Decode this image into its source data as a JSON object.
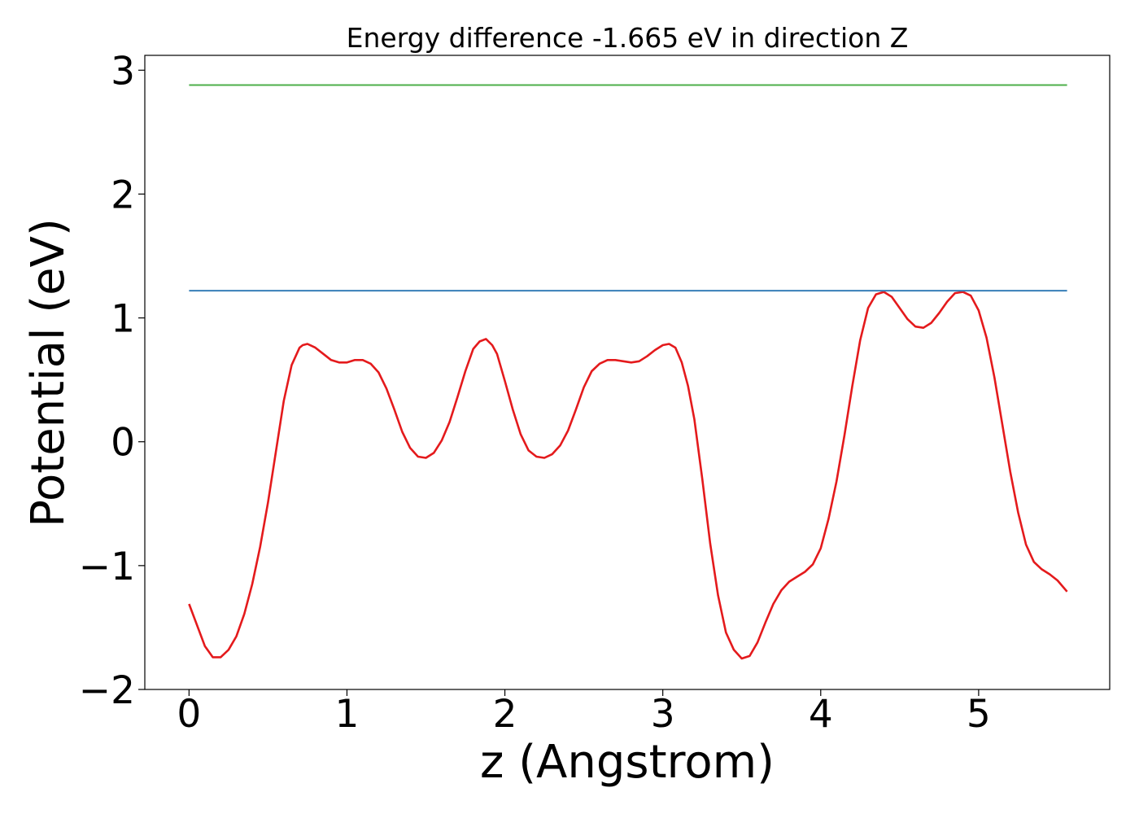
{
  "chart_data": {
    "type": "line",
    "title": "Energy difference -1.665 eV in direction Z",
    "xlabel": "z (Angstrom)",
    "ylabel": "Potential (eV)",
    "xlim": [
      -0.28,
      5.83
    ],
    "ylim": [
      -2.0,
      3.12
    ],
    "x_ticks": [
      0,
      1,
      2,
      3,
      4,
      5
    ],
    "x_tick_labels": [
      "0",
      "1",
      "2",
      "3",
      "4",
      "5"
    ],
    "y_ticks": [
      -2,
      -1,
      0,
      1,
      2,
      3
    ],
    "y_tick_labels": [
      "−2",
      "−1",
      "0",
      "1",
      "2",
      "3"
    ],
    "grid": false,
    "series": [
      {
        "color": "#e41a1c",
        "x": [
          0,
          0.1,
          0.15,
          0.2,
          0.25,
          0.3,
          0.35,
          0.4,
          0.45,
          0.5,
          0.55,
          0.6,
          0.65,
          0.7,
          0.72,
          0.75,
          0.8,
          0.85,
          0.9,
          0.95,
          1.0,
          1.05,
          1.1,
          1.15,
          1.2,
          1.25,
          1.3,
          1.35,
          1.4,
          1.45,
          1.5,
          1.55,
          1.6,
          1.65,
          1.7,
          1.75,
          1.8,
          1.84,
          1.88,
          1.92,
          1.95,
          2.0,
          2.05,
          2.1,
          2.15,
          2.2,
          2.25,
          2.3,
          2.35,
          2.4,
          2.45,
          2.5,
          2.55,
          2.6,
          2.65,
          2.7,
          2.75,
          2.8,
          2.85,
          2.9,
          2.95,
          3.0,
          3.04,
          3.08,
          3.12,
          3.16,
          3.2,
          3.25,
          3.3,
          3.35,
          3.4,
          3.45,
          3.5,
          3.55,
          3.6,
          3.65,
          3.7,
          3.75,
          3.8,
          3.85,
          3.9,
          3.95,
          4.0,
          4.05,
          4.1,
          4.15,
          4.2,
          4.25,
          4.3,
          4.35,
          4.4,
          4.45,
          4.5,
          4.55,
          4.6,
          4.65,
          4.7,
          4.75,
          4.8,
          4.85,
          4.9,
          4.95,
          5.0,
          5.05,
          5.1,
          5.15,
          5.2,
          5.25,
          5.3,
          5.35,
          5.4,
          5.45,
          5.5,
          5.56
        ],
        "y": [
          -1.31,
          -1.65,
          -1.74,
          -1.74,
          -1.68,
          -1.57,
          -1.39,
          -1.15,
          -0.85,
          -0.49,
          -0.08,
          0.33,
          0.62,
          0.76,
          0.78,
          0.79,
          0.76,
          0.71,
          0.66,
          0.64,
          0.64,
          0.66,
          0.66,
          0.63,
          0.56,
          0.43,
          0.26,
          0.08,
          -0.05,
          -0.12,
          -0.13,
          -0.09,
          0.01,
          0.16,
          0.36,
          0.57,
          0.75,
          0.81,
          0.83,
          0.78,
          0.71,
          0.49,
          0.26,
          0.06,
          -0.07,
          -0.12,
          -0.13,
          -0.1,
          -0.03,
          0.09,
          0.26,
          0.44,
          0.57,
          0.63,
          0.66,
          0.66,
          0.65,
          0.64,
          0.65,
          0.69,
          0.74,
          0.78,
          0.79,
          0.76,
          0.64,
          0.45,
          0.18,
          -0.3,
          -0.82,
          -1.24,
          -1.54,
          -1.68,
          -1.75,
          -1.73,
          -1.62,
          -1.46,
          -1.31,
          -1.2,
          -1.13,
          -1.09,
          -1.05,
          -0.99,
          -0.86,
          -0.62,
          -0.32,
          0.05,
          0.45,
          0.82,
          1.08,
          1.19,
          1.21,
          1.17,
          1.08,
          0.99,
          0.93,
          0.92,
          0.96,
          1.04,
          1.13,
          1.2,
          1.21,
          1.18,
          1.06,
          0.84,
          0.52,
          0.14,
          -0.24,
          -0.57,
          -0.83,
          -0.97,
          -1.03,
          -1.07,
          -1.12,
          -1.21
        ]
      },
      {
        "color": "#377eb8",
        "x": [
          0,
          5.56
        ],
        "y": [
          1.22,
          1.22
        ]
      },
      {
        "color": "#4daf4a",
        "x": [
          0,
          5.56
        ],
        "y": [
          2.88,
          2.88
        ]
      }
    ]
  }
}
